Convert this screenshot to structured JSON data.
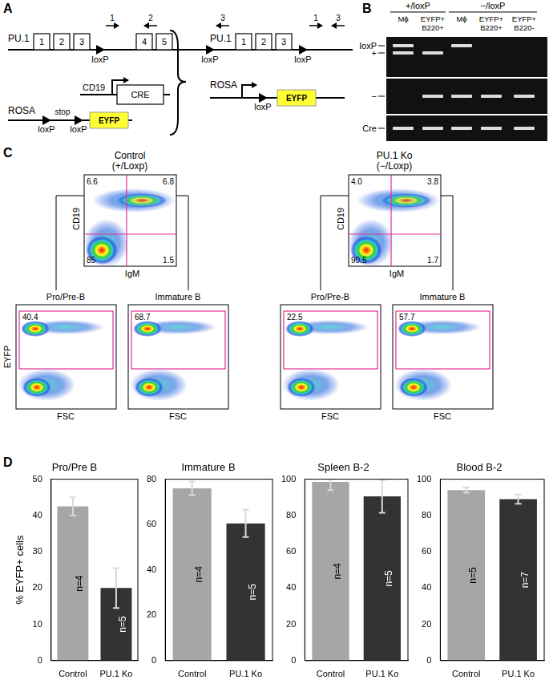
{
  "figure": {
    "A": {
      "label": "A",
      "pu1_floxed": {
        "gene": "PU.1",
        "exons": [
          "1",
          "2",
          "3",
          "4",
          "5"
        ],
        "primers": [
          "1",
          "2",
          "3"
        ],
        "loxp": [
          "loxP",
          "loxP"
        ]
      },
      "rosa": {
        "name": "ROSA",
        "stop": "stop",
        "loxp": [
          "loxP",
          "loxP"
        ],
        "reporter": "EYFP"
      },
      "cre": {
        "promoter": "CD19",
        "gene": "CRE"
      },
      "pu1_deleted": {
        "gene": "PU.1",
        "exons": [
          "1",
          "2",
          "3"
        ],
        "primers": [
          "1",
          "3"
        ],
        "loxp": "loxP"
      },
      "rosa_deleted": {
        "name": "ROSA",
        "loxp": "loxP",
        "reporter": "EYFP"
      }
    },
    "B": {
      "label": "B",
      "groups": [
        {
          "name": "+/loxP",
          "lanes": [
            "Mϕ",
            "EYFP+ B220+"
          ]
        },
        {
          "name": "−/loxP",
          "lanes": [
            "Mϕ",
            "EYFP+ B220+",
            "EYFP+ B220-"
          ]
        }
      ],
      "gels": [
        {
          "bands": [
            {
              "name": "loxP",
              "present": [
                true,
                false,
                true,
                false,
                false
              ]
            },
            {
              "name": "+",
              "present": [
                true,
                true,
                false,
                false,
                false
              ]
            }
          ]
        },
        {
          "bands": [
            {
              "name": "−",
              "present": [
                false,
                true,
                true,
                true,
                true
              ]
            }
          ]
        },
        {
          "bands": [
            {
              "name": "Cre",
              "present": [
                true,
                true,
                true,
                true,
                true
              ]
            }
          ]
        }
      ]
    },
    "C": {
      "label": "C",
      "gate_x_label": "FSC",
      "gate_y_label": "EYFP",
      "groups": [
        {
          "title": "Control",
          "genotype": "(+/Loxp)",
          "x_label": "IgM",
          "y_label": "CD19",
          "quadrants": {
            "top_left": "6.6",
            "top_right": "6.8",
            "bottom_left": "85",
            "bottom_right": "1.5"
          },
          "gates": [
            {
              "title": "Pro/Pre-B",
              "value": "40.4"
            },
            {
              "title": "Immature B",
              "value": "68.7"
            }
          ]
        },
        {
          "title": "PU.1 Ko",
          "genotype": "(−/Loxp)",
          "x_label": "IgM",
          "y_label": "CD19",
          "quadrants": {
            "top_left": "4.0",
            "top_right": "3.8",
            "bottom_left": "90.5",
            "bottom_right": "1.7"
          },
          "gates": [
            {
              "title": "Pro/Pre-B",
              "value": "22.5"
            },
            {
              "title": "Immature B",
              "value": "57.7"
            }
          ]
        }
      ]
    },
    "D": {
      "label": "D"
    }
  },
  "chart_data": [
    {
      "type": "bar",
      "title": "Pro/Pre B",
      "ylabel": "% EYFP+ cells",
      "categories": [
        "Control",
        "PU.1 Ko"
      ],
      "values": [
        42.5,
        20
      ],
      "errors": [
        2.5,
        5.5
      ],
      "n_labels": [
        "n=4",
        "n=5"
      ],
      "colors": [
        "#a6a6a6",
        "#333333"
      ],
      "ylim": [
        0,
        50
      ],
      "yticks": [
        0,
        10,
        20,
        30,
        40,
        50
      ],
      "grid": false
    },
    {
      "type": "bar",
      "title": "Immature B",
      "categories": [
        "Control",
        "PU.1 Ko"
      ],
      "values": [
        76,
        60.5
      ],
      "errors": [
        3,
        6
      ],
      "n_labels": [
        "n=4",
        "n=5"
      ],
      "colors": [
        "#a6a6a6",
        "#333333"
      ],
      "ylim": [
        0,
        80
      ],
      "yticks": [
        0,
        20,
        40,
        60,
        80
      ],
      "grid": false
    },
    {
      "type": "bar",
      "title": "Spleen B-2",
      "categories": [
        "Control",
        "PU.1 Ko"
      ],
      "values": [
        98.5,
        90.5
      ],
      "errors": [
        4.5,
        9
      ],
      "n_labels": [
        "n=4",
        "n=5"
      ],
      "colors": [
        "#a6a6a6",
        "#333333"
      ],
      "ylim": [
        0,
        100
      ],
      "yticks": [
        0,
        20,
        40,
        60,
        80,
        100
      ],
      "grid": false
    },
    {
      "type": "bar",
      "title": "Blood B-2",
      "categories": [
        "Control",
        "PU.1 Ko"
      ],
      "values": [
        94,
        89
      ],
      "errors": [
        1.5,
        2.5
      ],
      "n_labels": [
        "n=5",
        "n=7"
      ],
      "colors": [
        "#a6a6a6",
        "#333333"
      ],
      "ylim": [
        0,
        100
      ],
      "yticks": [
        0,
        20,
        40,
        60,
        80,
        100
      ],
      "grid": false
    }
  ]
}
